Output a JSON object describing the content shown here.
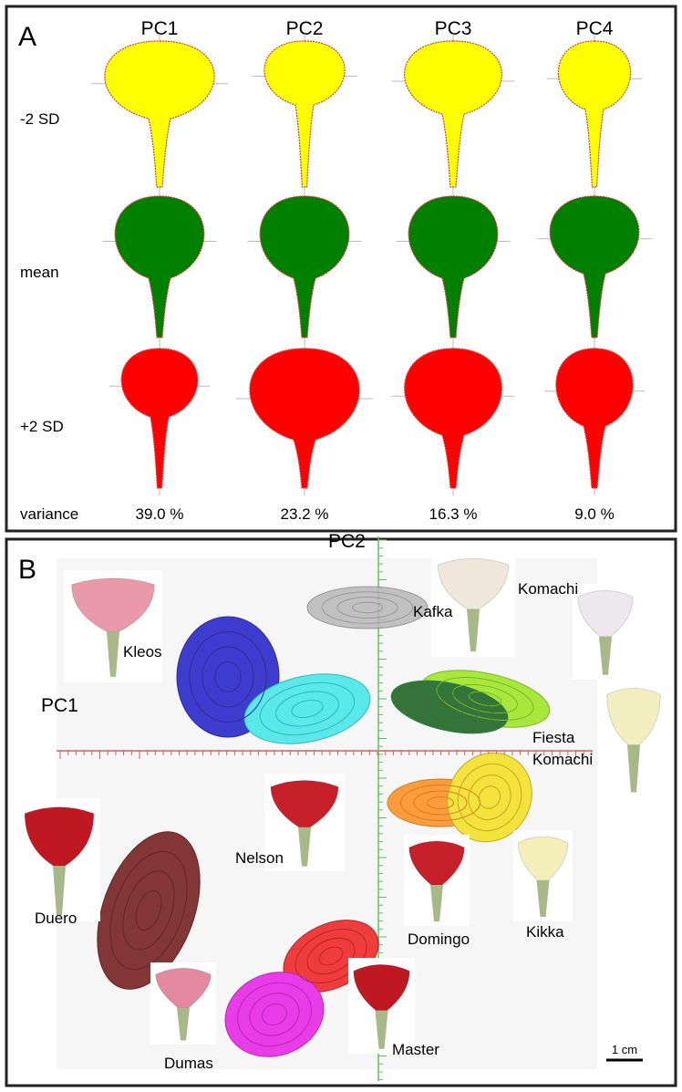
{
  "panel_a": {
    "label": "A",
    "columns": [
      "PC1",
      "PC2",
      "PC3",
      "PC4"
    ],
    "rows": [
      "-2 SD",
      "mean",
      "+2 SD"
    ],
    "variance_label": "variance",
    "variance": [
      "39.0 %",
      "23.2 %",
      "16.3 %",
      "9.0 %"
    ]
  },
  "panel_b": {
    "label": "B",
    "x_axis": "PC1",
    "y_axis": "PC2",
    "cultivars": {
      "kleos": "Kleos",
      "kafka": "Kafka",
      "komachi": "Komachi",
      "fiesta_komachi": [
        "Fiesta",
        "Komachi"
      ],
      "nelson": "Nelson",
      "duero": "Duero",
      "domingo": "Domingo",
      "kikka": "Kikka",
      "dumas": "Dumas",
      "master": "Master"
    },
    "scale": "1 cm"
  }
}
